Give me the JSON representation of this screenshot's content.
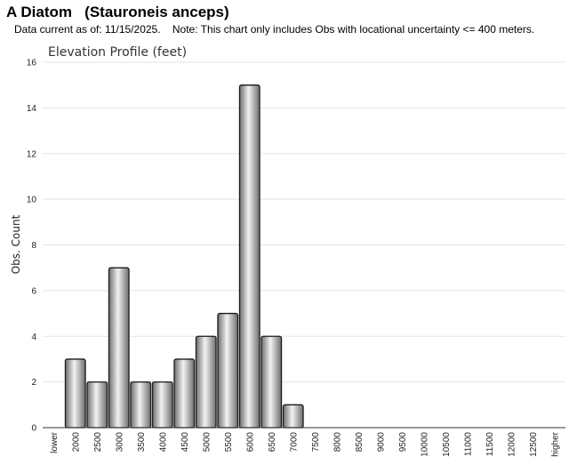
{
  "header": {
    "title": "A Diatom   (Stauroneis anceps)",
    "note": "Data current as of: 11/15/2025.    Note: This chart only includes Obs with locational uncertainty <= 400 meters."
  },
  "chart_data": {
    "type": "bar",
    "title": "Elevation Profile (feet)",
    "xlabel": "",
    "ylabel": "Obs. Count",
    "ylim": [
      0,
      16
    ],
    "yticks": [
      0,
      2,
      4,
      6,
      8,
      10,
      12,
      14,
      16
    ],
    "grid": true,
    "categories": [
      "lower",
      "2000",
      "2500",
      "3000",
      "3500",
      "4000",
      "4500",
      "5000",
      "5500",
      "6000",
      "6500",
      "7000",
      "7500",
      "8000",
      "8500",
      "9000",
      "9500",
      "10000",
      "10500",
      "11000",
      "11500",
      "12000",
      "12500",
      "higher"
    ],
    "values": [
      0,
      3,
      2,
      7,
      2,
      2,
      3,
      4,
      5,
      15,
      4,
      1,
      0,
      0,
      0,
      0,
      0,
      0,
      0,
      0,
      0,
      0,
      0,
      0
    ],
    "colors": {
      "bar_dark": "#6e6e6e",
      "bar_light": "#f2f2f2",
      "bar_stroke": "#1a1a1a",
      "grid": "#e3e3e3",
      "axis": "#333333"
    }
  }
}
